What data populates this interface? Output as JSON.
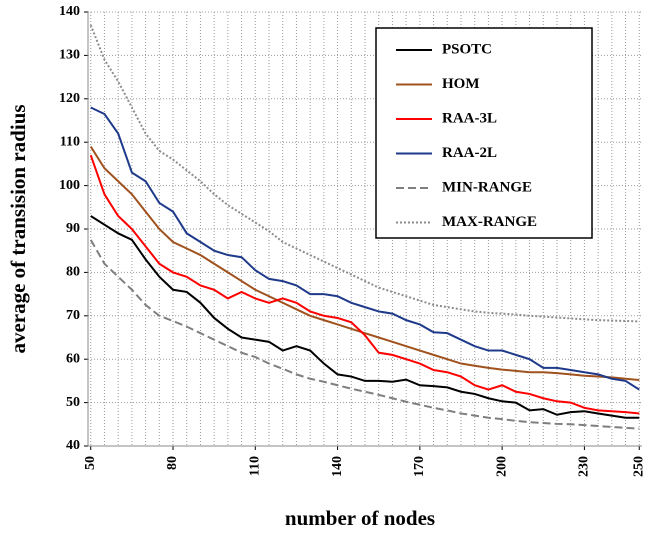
{
  "chart_data": {
    "type": "line",
    "x_label": "number of nodes",
    "y_label": "average of transision radius",
    "x": [
      50,
      55,
      60,
      65,
      70,
      75,
      80,
      85,
      90,
      95,
      100,
      105,
      110,
      115,
      120,
      125,
      130,
      135,
      140,
      145,
      150,
      155,
      160,
      165,
      170,
      175,
      180,
      185,
      190,
      195,
      200,
      205,
      210,
      215,
      220,
      225,
      230,
      235,
      240,
      245,
      250
    ],
    "xlim": [
      49,
      251
    ],
    "xticks": [
      50,
      80,
      110,
      140,
      170,
      200,
      230,
      250
    ],
    "ylim": [
      40,
      140
    ],
    "yticks": [
      40,
      50,
      60,
      70,
      80,
      90,
      100,
      110,
      120,
      130,
      140
    ],
    "grid": true,
    "legend": "upper right",
    "series": [
      {
        "name": "PSOTC",
        "color": "#000000",
        "dash": "solid",
        "values": [
          93,
          91,
          89,
          87.5,
          83,
          79,
          76,
          75.5,
          73,
          69.5,
          67,
          65,
          64.5,
          64,
          62,
          63,
          62,
          59,
          56.5,
          56,
          55,
          55,
          54.8,
          55.3,
          54,
          53.8,
          53.5,
          52.5,
          52,
          51,
          50.3,
          50,
          48.2,
          48.5,
          47.2,
          47.8,
          48,
          47.5,
          47,
          46.5,
          46.5
        ]
      },
      {
        "name": "HOM",
        "color": "#a0521e",
        "dash": "solid",
        "values": [
          109,
          104,
          101,
          98,
          94,
          90,
          87,
          85.5,
          84,
          82,
          80,
          78,
          76,
          74.5,
          73,
          71.5,
          70,
          69,
          68,
          67,
          66,
          65,
          64,
          63,
          62,
          61,
          60,
          59,
          58.5,
          58,
          57.6,
          57.3,
          57,
          57,
          56.8,
          56.5,
          56.2,
          56,
          55.8,
          55.5,
          55.2
        ]
      },
      {
        "name": "RAA-3L",
        "color": "#ff0000",
        "dash": "solid",
        "values": [
          107,
          98,
          93,
          90,
          86,
          82,
          80,
          79,
          77,
          76,
          74,
          75.5,
          74,
          73,
          74,
          73,
          71,
          70,
          69.5,
          68.5,
          65.5,
          61.5,
          61,
          60,
          59,
          57.5,
          57,
          56,
          54,
          53,
          54,
          52.5,
          52,
          51,
          50.3,
          50,
          48.8,
          48.2,
          48,
          47.8,
          47.5
        ]
      },
      {
        "name": "RAA-2L",
        "color": "#1f3a8a",
        "dash": "solid",
        "values": [
          118,
          116.5,
          112,
          103,
          101,
          96,
          94,
          89,
          87,
          85,
          84,
          83.5,
          80.5,
          78.5,
          78,
          77,
          75,
          75,
          74.5,
          73,
          72,
          71,
          70.5,
          69,
          68,
          66.2,
          66,
          64.5,
          63,
          62,
          62,
          61,
          60,
          58,
          58,
          57.5,
          57,
          56.5,
          55.5,
          55,
          53
        ]
      },
      {
        "name": "MIN-RANGE",
        "color": "#7f7f7f",
        "dash": "dashed",
        "values": [
          87.5,
          82,
          79,
          76,
          72.5,
          70,
          68.8,
          67.5,
          66,
          64.5,
          63,
          61.5,
          60.5,
          59,
          57.8,
          56.5,
          55.5,
          54.8,
          54,
          53.2,
          52.5,
          51.8,
          51,
          50.2,
          49.5,
          48.8,
          48.2,
          47.5,
          47,
          46.5,
          46.2,
          45.8,
          45.5,
          45.3,
          45.1,
          45,
          44.8,
          44.6,
          44.4,
          44.2,
          44
        ]
      },
      {
        "name": "MAX-RANGE",
        "color": "#8c8c8c",
        "dash": "dotted",
        "values": [
          137,
          129,
          124,
          118,
          112,
          108,
          106,
          103.5,
          101,
          98,
          95.5,
          93.5,
          91.5,
          89.5,
          87,
          85.5,
          84,
          82.5,
          81,
          79.5,
          78,
          76.5,
          75.5,
          74.5,
          73.5,
          72.5,
          72,
          71.5,
          71,
          70.7,
          70.5,
          70.3,
          70,
          69.8,
          69.6,
          69.4,
          69.2,
          69,
          68.9,
          68.8,
          68.7
        ]
      }
    ]
  }
}
